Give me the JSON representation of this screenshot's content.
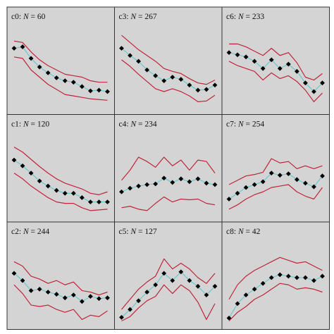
{
  "colors": {
    "panel_background": "#d4d4d4",
    "panel_border": "#333333",
    "envelope_line": "#c0243a",
    "mean_line": "#5ec8cf",
    "marker": "#000000",
    "page_background": "#ffffff"
  },
  "chart_data": [
    {
      "type": "line",
      "title_prefix": "c0: ",
      "title_n_label": "N",
      "title_suffix": " = 60",
      "x": [
        1,
        2,
        3,
        4,
        5,
        6,
        7,
        8,
        9,
        10,
        11,
        12
      ],
      "ylim": [
        0,
        1
      ],
      "series": [
        {
          "role": "upper",
          "values": [
            0.9,
            0.88,
            0.75,
            0.64,
            0.56,
            0.5,
            0.44,
            0.42,
            0.4,
            0.35,
            0.33,
            0.33
          ]
        },
        {
          "role": "mean",
          "values": [
            0.8,
            0.82,
            0.66,
            0.54,
            0.46,
            0.39,
            0.35,
            0.33,
            0.27,
            0.21,
            0.22,
            0.2
          ]
        },
        {
          "role": "lower",
          "values": [
            0.68,
            0.66,
            0.5,
            0.4,
            0.3,
            0.23,
            0.16,
            0.14,
            0.12,
            0.1,
            0.09,
            0.08
          ]
        }
      ]
    },
    {
      "type": "line",
      "title_prefix": "c3: ",
      "title_n_label": "N",
      "title_suffix": " = 267",
      "x": [
        1,
        2,
        3,
        4,
        5,
        6,
        7,
        8,
        9,
        10,
        11,
        12
      ],
      "ylim": [
        0,
        1
      ],
      "series": [
        {
          "role": "upper",
          "values": [
            0.98,
            0.88,
            0.78,
            0.7,
            0.62,
            0.52,
            0.48,
            0.45,
            0.38,
            0.32,
            0.3,
            0.36
          ]
        },
        {
          "role": "mean",
          "values": [
            0.8,
            0.7,
            0.62,
            0.5,
            0.42,
            0.35,
            0.4,
            0.37,
            0.29,
            0.22,
            0.23,
            0.29
          ]
        },
        {
          "role": "lower",
          "values": [
            0.64,
            0.55,
            0.44,
            0.34,
            0.24,
            0.2,
            0.24,
            0.2,
            0.14,
            0.06,
            0.07,
            0.15
          ]
        }
      ]
    },
    {
      "type": "line",
      "title_prefix": "c6: ",
      "title_n_label": "N",
      "title_suffix": " = 233",
      "x": [
        1,
        2,
        3,
        4,
        5,
        6,
        7,
        8,
        9,
        10,
        11,
        12
      ],
      "ylim": [
        0,
        1
      ],
      "series": [
        {
          "role": "upper",
          "values": [
            0.86,
            0.86,
            0.82,
            0.76,
            0.7,
            0.8,
            0.7,
            0.74,
            0.6,
            0.4,
            0.36,
            0.45
          ]
        },
        {
          "role": "mean",
          "values": [
            0.74,
            0.71,
            0.68,
            0.62,
            0.52,
            0.64,
            0.52,
            0.58,
            0.48,
            0.32,
            0.2,
            0.32
          ]
        },
        {
          "role": "lower",
          "values": [
            0.62,
            0.56,
            0.52,
            0.48,
            0.36,
            0.46,
            0.38,
            0.42,
            0.34,
            0.22,
            0.06,
            0.18
          ]
        }
      ]
    },
    {
      "type": "line",
      "title_prefix": "c1: ",
      "title_n_label": "N",
      "title_suffix": " = 120",
      "x": [
        1,
        2,
        3,
        4,
        5,
        6,
        7,
        8,
        9,
        10,
        11,
        12
      ],
      "ylim": [
        0,
        1
      ],
      "series": [
        {
          "role": "upper",
          "values": [
            0.92,
            0.85,
            0.75,
            0.65,
            0.56,
            0.48,
            0.42,
            0.38,
            0.34,
            0.28,
            0.26,
            0.3
          ]
        },
        {
          "role": "mean",
          "values": [
            0.74,
            0.66,
            0.56,
            0.45,
            0.38,
            0.32,
            0.28,
            0.28,
            0.22,
            0.16,
            0.16,
            0.16
          ]
        },
        {
          "role": "lower",
          "values": [
            0.56,
            0.48,
            0.38,
            0.3,
            0.22,
            0.16,
            0.14,
            0.14,
            0.08,
            0.04,
            0.05,
            0.06
          ]
        }
      ]
    },
    {
      "type": "line",
      "title_prefix": "c4: ",
      "title_n_label": "N",
      "title_suffix": " = 234",
      "x": [
        1,
        2,
        3,
        4,
        5,
        6,
        7,
        8,
        9,
        10,
        11,
        12
      ],
      "ylim": [
        0,
        1
      ],
      "series": [
        {
          "role": "upper",
          "values": [
            0.46,
            0.6,
            0.78,
            0.72,
            0.64,
            0.78,
            0.66,
            0.74,
            0.6,
            0.74,
            0.72,
            0.56
          ]
        },
        {
          "role": "mean",
          "values": [
            0.3,
            0.35,
            0.38,
            0.4,
            0.41,
            0.49,
            0.43,
            0.48,
            0.44,
            0.48,
            0.42,
            0.4
          ]
        },
        {
          "role": "lower",
          "values": [
            0.08,
            0.1,
            0.06,
            0.04,
            0.14,
            0.23,
            0.16,
            0.2,
            0.19,
            0.2,
            0.14,
            0.12
          ]
        }
      ]
    },
    {
      "type": "line",
      "title_prefix": "c7: ",
      "title_n_label": "N",
      "title_suffix": " = 254",
      "x": [
        1,
        2,
        3,
        4,
        5,
        6,
        7,
        8,
        9,
        10,
        11,
        12
      ],
      "ylim": [
        0,
        1
      ],
      "series": [
        {
          "role": "upper",
          "values": [
            0.4,
            0.46,
            0.52,
            0.54,
            0.57,
            0.76,
            0.7,
            0.72,
            0.62,
            0.66,
            0.62,
            0.66
          ]
        },
        {
          "role": "mean",
          "values": [
            0.2,
            0.28,
            0.36,
            0.4,
            0.44,
            0.56,
            0.53,
            0.55,
            0.47,
            0.42,
            0.37,
            0.52
          ]
        },
        {
          "role": "lower",
          "values": [
            0.06,
            0.12,
            0.2,
            0.26,
            0.3,
            0.36,
            0.38,
            0.4,
            0.3,
            0.24,
            0.2,
            0.36
          ]
        }
      ]
    },
    {
      "type": "line",
      "title_prefix": "c2: ",
      "title_n_label": "N",
      "title_suffix": " = 244",
      "x": [
        1,
        2,
        3,
        4,
        5,
        6,
        7,
        8,
        9,
        10,
        11,
        12
      ],
      "ylim": [
        0,
        1
      ],
      "series": [
        {
          "role": "upper",
          "values": [
            0.82,
            0.76,
            0.62,
            0.58,
            0.52,
            0.56,
            0.5,
            0.54,
            0.42,
            0.4,
            0.36,
            0.4
          ]
        },
        {
          "role": "mean",
          "values": [
            0.66,
            0.56,
            0.42,
            0.44,
            0.4,
            0.37,
            0.32,
            0.36,
            0.27,
            0.34,
            0.31,
            0.32
          ]
        },
        {
          "role": "lower",
          "values": [
            0.5,
            0.38,
            0.22,
            0.2,
            0.22,
            0.16,
            0.12,
            0.16,
            0.02,
            0.08,
            0.06,
            0.14
          ]
        }
      ]
    },
    {
      "type": "line",
      "title_prefix": "c5: ",
      "title_n_label": "N",
      "title_suffix": " = 127",
      "x": [
        1,
        2,
        3,
        4,
        5,
        6,
        7,
        8,
        9,
        10,
        11,
        12
      ],
      "ylim": [
        0,
        1
      ],
      "series": [
        {
          "role": "upper",
          "values": [
            0.16,
            0.3,
            0.44,
            0.54,
            0.62,
            0.86,
            0.72,
            0.8,
            0.72,
            0.6,
            0.52,
            0.66
          ]
        },
        {
          "role": "mean",
          "values": [
            0.05,
            0.16,
            0.28,
            0.4,
            0.5,
            0.66,
            0.56,
            0.68,
            0.56,
            0.48,
            0.36,
            0.48
          ]
        },
        {
          "role": "lower",
          "values": [
            0.0,
            0.06,
            0.18,
            0.28,
            0.34,
            0.5,
            0.38,
            0.5,
            0.42,
            0.26,
            0.02,
            0.24
          ]
        }
      ]
    },
    {
      "type": "line",
      "title_prefix": "c8: ",
      "title_n_label": "N",
      "title_suffix": " = 42",
      "x": [
        1,
        2,
        3,
        4,
        5,
        6,
        7,
        8,
        9,
        10,
        11,
        12
      ],
      "ylim": [
        0,
        1
      ],
      "series": [
        {
          "role": "upper",
          "values": [
            0.3,
            0.5,
            0.62,
            0.7,
            0.76,
            0.82,
            0.88,
            0.84,
            0.8,
            0.82,
            0.76,
            0.7
          ]
        },
        {
          "role": "mean",
          "values": [
            0.04,
            0.24,
            0.36,
            0.44,
            0.52,
            0.6,
            0.64,
            0.62,
            0.6,
            0.6,
            0.56,
            0.62
          ]
        },
        {
          "role": "lower",
          "values": [
            0.0,
            0.12,
            0.2,
            0.3,
            0.36,
            0.44,
            0.52,
            0.5,
            0.44,
            0.46,
            0.44,
            0.4
          ]
        }
      ]
    }
  ]
}
